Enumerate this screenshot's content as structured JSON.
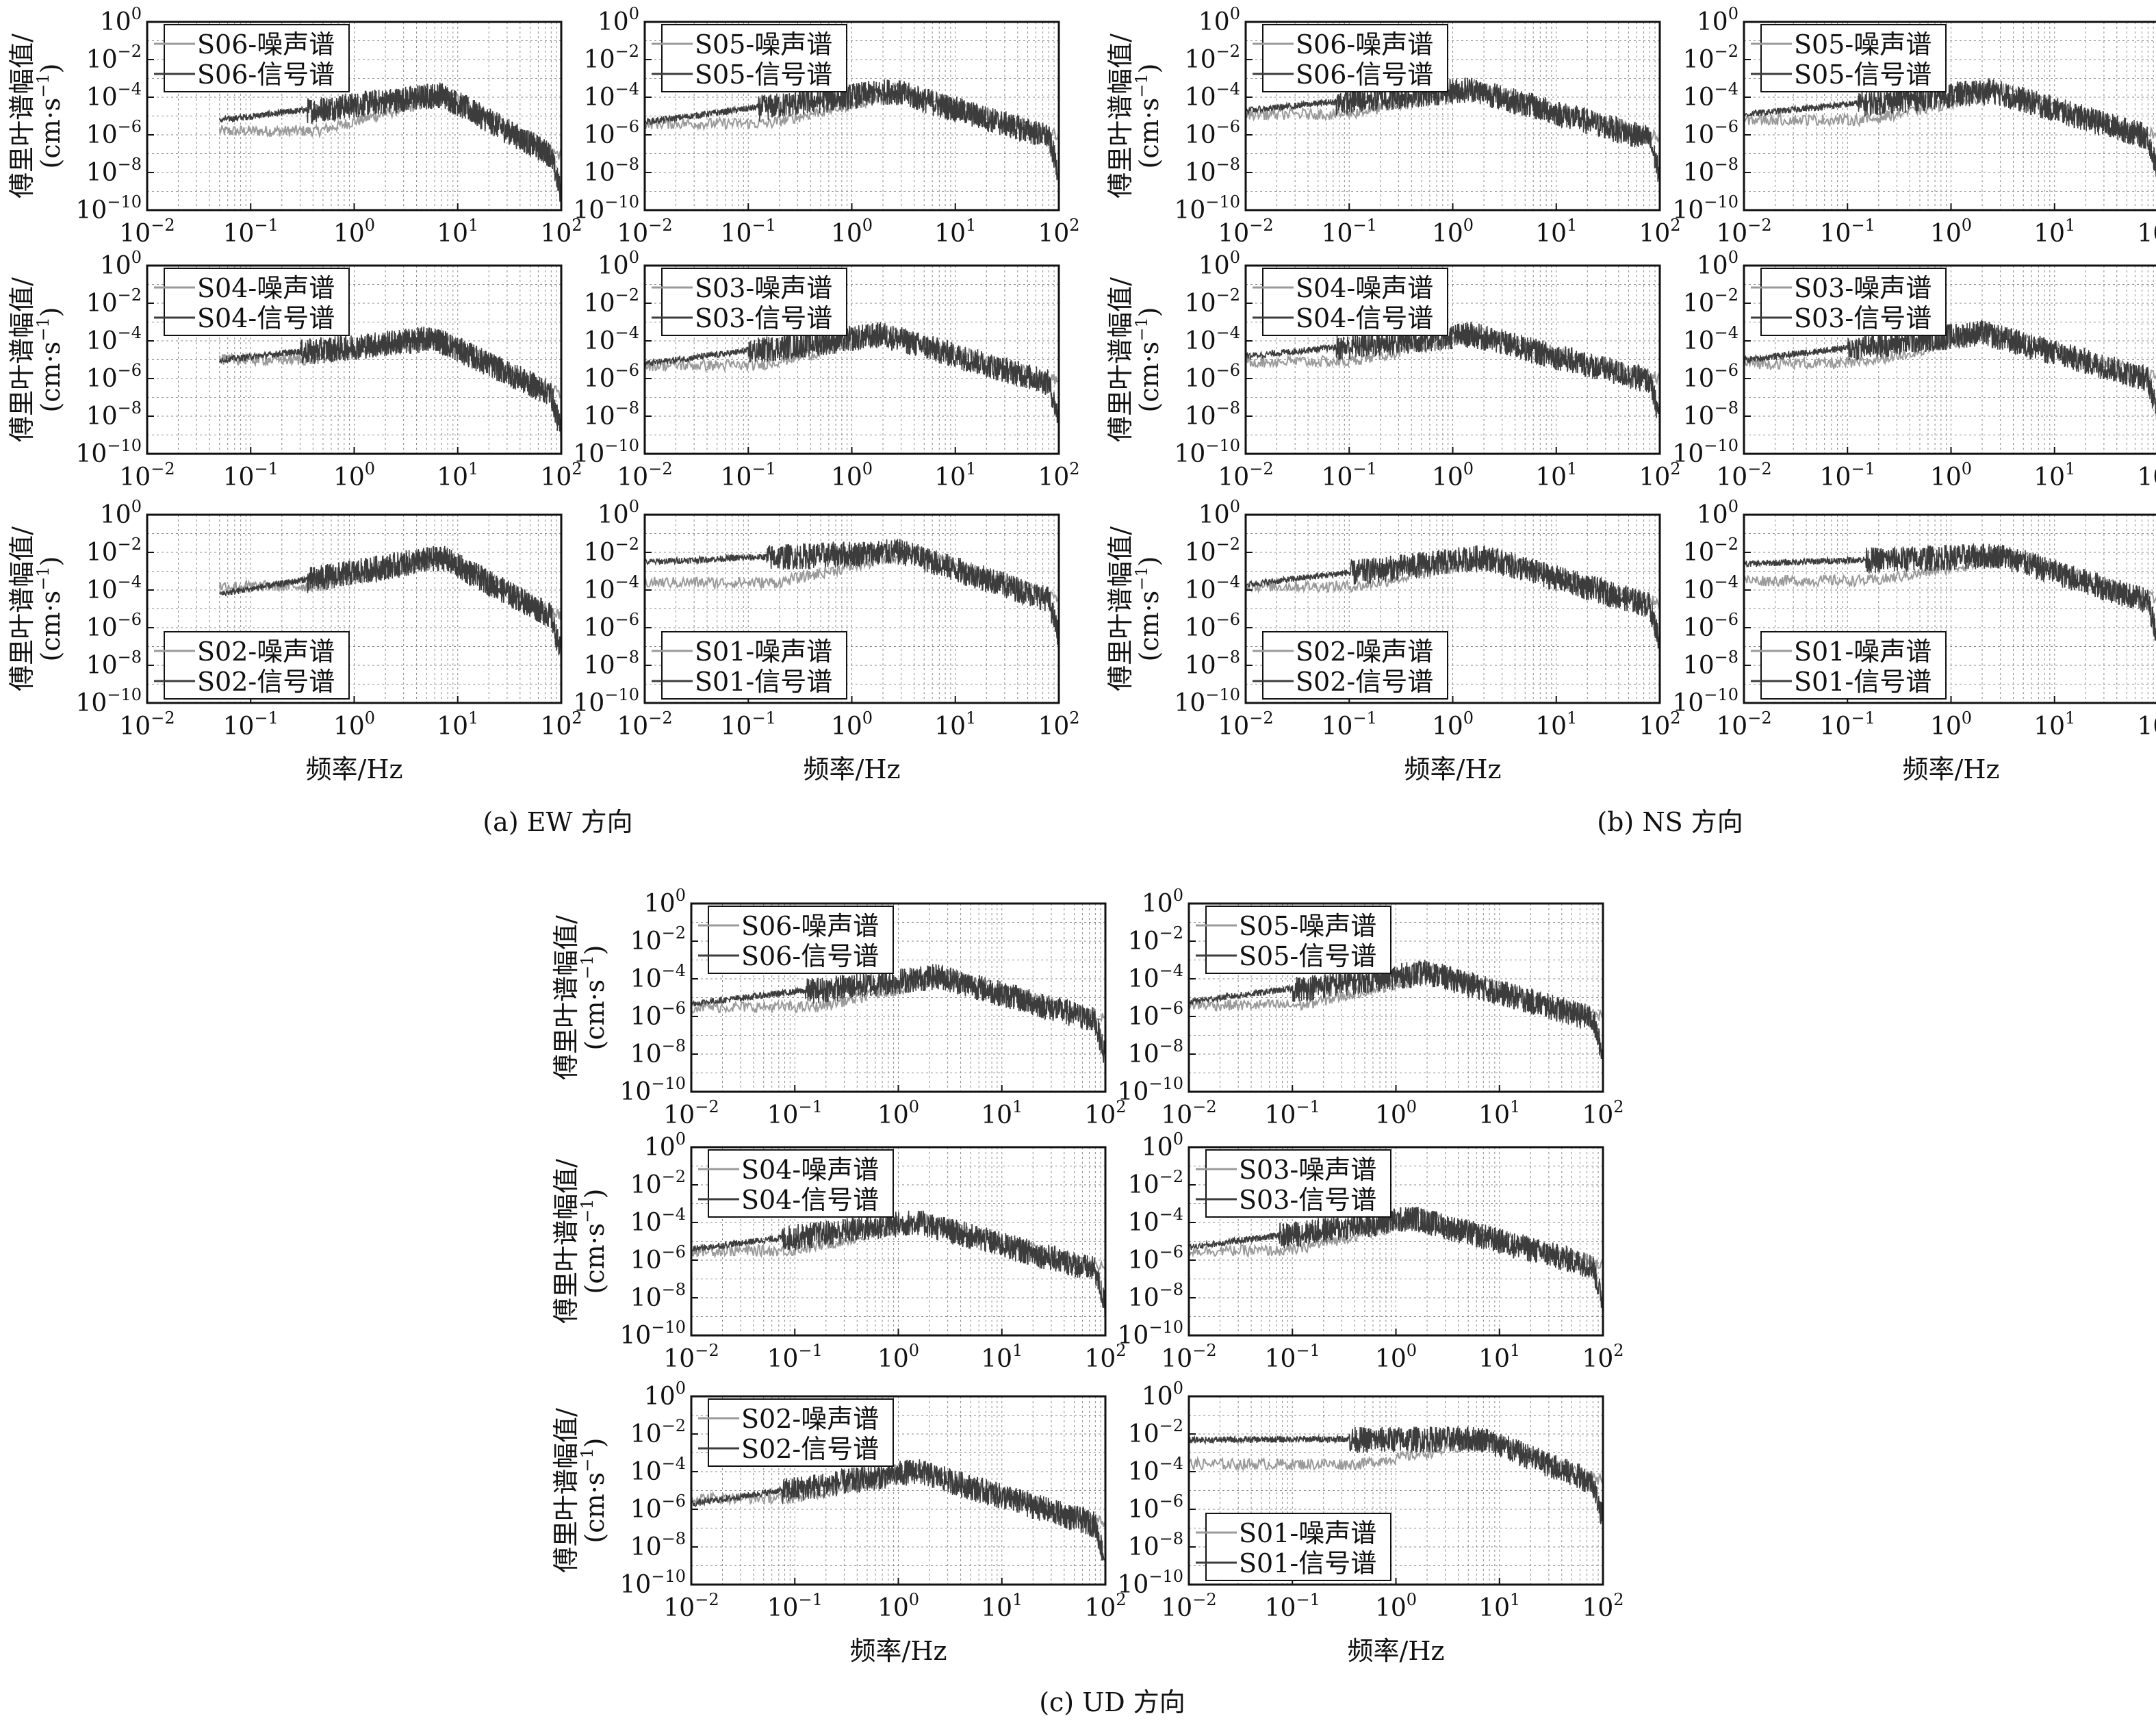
{
  "figure": {
    "axis_units": {
      "ylabel": "傅里叶谱幅值/",
      "yunit": "(cm·s",
      "yunit_exp": "−1",
      "yunit_close": ")",
      "xlabel": "频率/Hz"
    },
    "groups": [
      {
        "caption": "(a) EW 方向"
      },
      {
        "caption": "(b) NS 方向"
      },
      {
        "caption": "(c) UD 方向"
      }
    ]
  },
  "chart_data": {
    "type": "line",
    "x_scale": "log",
    "y_scale": "log",
    "xlim": [
      0.01,
      100
    ],
    "ylim": [
      1e-10,
      1
    ],
    "x_ticks": [
      "10",
      "10",
      "10",
      "10",
      "10"
    ],
    "x_tick_exps": [
      "−2",
      "−1",
      "0",
      "1",
      "2"
    ],
    "y_ticks": [
      "10",
      "10",
      "10",
      "10",
      "10",
      "10"
    ],
    "y_tick_exps": [
      "0",
      "−2",
      "−4",
      "−6",
      "−8",
      "−10"
    ],
    "grid": true,
    "colors": {
      "noise": "#9a9a9a",
      "signal": "#3c3c3c"
    },
    "panels": [
      {
        "group": 0,
        "legend_pos": "top-left",
        "legend": [
          "S06-噪声谱",
          "S06-信号谱"
        ],
        "xstart": 0.05,
        "peak": 7,
        "level": -3.8,
        "low": -5.2,
        "noise": -5.8,
        "hf": -7.3
      },
      {
        "group": 0,
        "legend_pos": "top-left",
        "legend": [
          "S05-噪声谱",
          "S05-信号谱"
        ],
        "xstart": 0.01,
        "peak": 2.5,
        "level": -3.6,
        "low": -5.3,
        "noise": -5.4,
        "hf": -6.2
      },
      {
        "group": 0,
        "legend_pos": "top-left",
        "legend": [
          "S04-噪声谱",
          "S04-信号谱"
        ],
        "xstart": 0.05,
        "peak": 6,
        "level": -3.8,
        "low": -5.0,
        "noise": -5.0,
        "hf": -7.0
      },
      {
        "group": 0,
        "legend_pos": "top-left",
        "legend": [
          "S03-噪声谱",
          "S03-信号谱"
        ],
        "xstart": 0.01,
        "peak": 2,
        "level": -3.6,
        "low": -5.2,
        "noise": -5.3,
        "hf": -6.3
      },
      {
        "group": 0,
        "legend_pos": "bottom-left",
        "legend": [
          "S02-噪声谱",
          "S02-信号谱"
        ],
        "xstart": 0.05,
        "peak": 7,
        "level": -2.2,
        "low": -4.2,
        "noise": -3.8,
        "hf": -5.6
      },
      {
        "group": 0,
        "legend_pos": "bottom-left",
        "legend": [
          "S01-噪声谱",
          "S01-信号谱"
        ],
        "xstart": 0.01,
        "peak": 3,
        "level": -1.9,
        "low": -2.5,
        "noise": -3.6,
        "hf": -4.6
      },
      {
        "group": 1,
        "legend_pos": "top-left",
        "legend": [
          "S06-噪声谱",
          "S06-信号谱"
        ],
        "xstart": 0.01,
        "peak": 1.5,
        "level": -3.5,
        "low": -4.7,
        "noise": -4.9,
        "hf": -6.3
      },
      {
        "group": 1,
        "legend_pos": "top-left",
        "legend": [
          "S05-噪声谱",
          "S05-信号谱"
        ],
        "xstart": 0.01,
        "peak": 2.5,
        "level": -3.6,
        "low": -4.9,
        "noise": -5.2,
        "hf": -6.2
      },
      {
        "group": 1,
        "legend_pos": "top-left",
        "legend": [
          "S04-噪声谱",
          "S04-信号谱"
        ],
        "xstart": 0.01,
        "peak": 1.5,
        "level": -3.6,
        "low": -4.8,
        "noise": -5.1,
        "hf": -6.2
      },
      {
        "group": 1,
        "legend_pos": "top-left",
        "legend": [
          "S03-噪声谱",
          "S03-信号谱"
        ],
        "xstart": 0.01,
        "peak": 2,
        "level": -3.5,
        "low": -5.0,
        "noise": -5.2,
        "hf": -6.1
      },
      {
        "group": 1,
        "legend_pos": "bottom-left",
        "legend": [
          "S02-噪声谱",
          "S02-信号谱"
        ],
        "xstart": 0.01,
        "peak": 2,
        "level": -2.2,
        "low": -3.7,
        "noise": -3.8,
        "hf": -4.9
      },
      {
        "group": 1,
        "legend_pos": "bottom-left",
        "legend": [
          "S01-噪声谱",
          "S01-信号谱"
        ],
        "xstart": 0.01,
        "peak": 3,
        "level": -2.1,
        "low": -2.6,
        "noise": -3.5,
        "hf": -4.7
      },
      {
        "group": 2,
        "legend_pos": "top-left",
        "legend": [
          "S06-噪声谱",
          "S06-信号谱"
        ],
        "xstart": 0.01,
        "peak": 2.5,
        "level": -3.8,
        "low": -5.3,
        "noise": -5.5,
        "hf": -6.3
      },
      {
        "group": 2,
        "legend_pos": "top-left",
        "legend": [
          "S05-噪声谱",
          "S05-信号谱"
        ],
        "xstart": 0.01,
        "peak": 2,
        "level": -3.6,
        "low": -5.2,
        "noise": -5.4,
        "hf": -6.2
      },
      {
        "group": 2,
        "legend_pos": "top-left",
        "legend": [
          "S04-噪声谱",
          "S04-信号谱"
        ],
        "xstart": 0.01,
        "peak": 1.5,
        "level": -3.9,
        "low": -5.4,
        "noise": -5.5,
        "hf": -6.6
      },
      {
        "group": 2,
        "legend_pos": "top-left",
        "legend": [
          "S03-噪声谱",
          "S03-信号谱"
        ],
        "xstart": 0.01,
        "peak": 1.5,
        "level": -3.7,
        "low": -5.3,
        "noise": -5.5,
        "hf": -6.4
      },
      {
        "group": 2,
        "legend_pos": "top-left",
        "legend": [
          "S02-噪声谱",
          "S02-信号谱"
        ],
        "xstart": 0.01,
        "peak": 1.5,
        "level": -3.9,
        "low": -5.7,
        "noise": -5.4,
        "hf": -6.9
      },
      {
        "group": 2,
        "legend_pos": "bottom-left",
        "legend": [
          "S01-噪声谱",
          "S01-信号谱"
        ],
        "xstart": 0.01,
        "peak": 7,
        "level": -2.2,
        "low": -2.3,
        "noise": -3.6,
        "hf": -4.7
      }
    ]
  }
}
